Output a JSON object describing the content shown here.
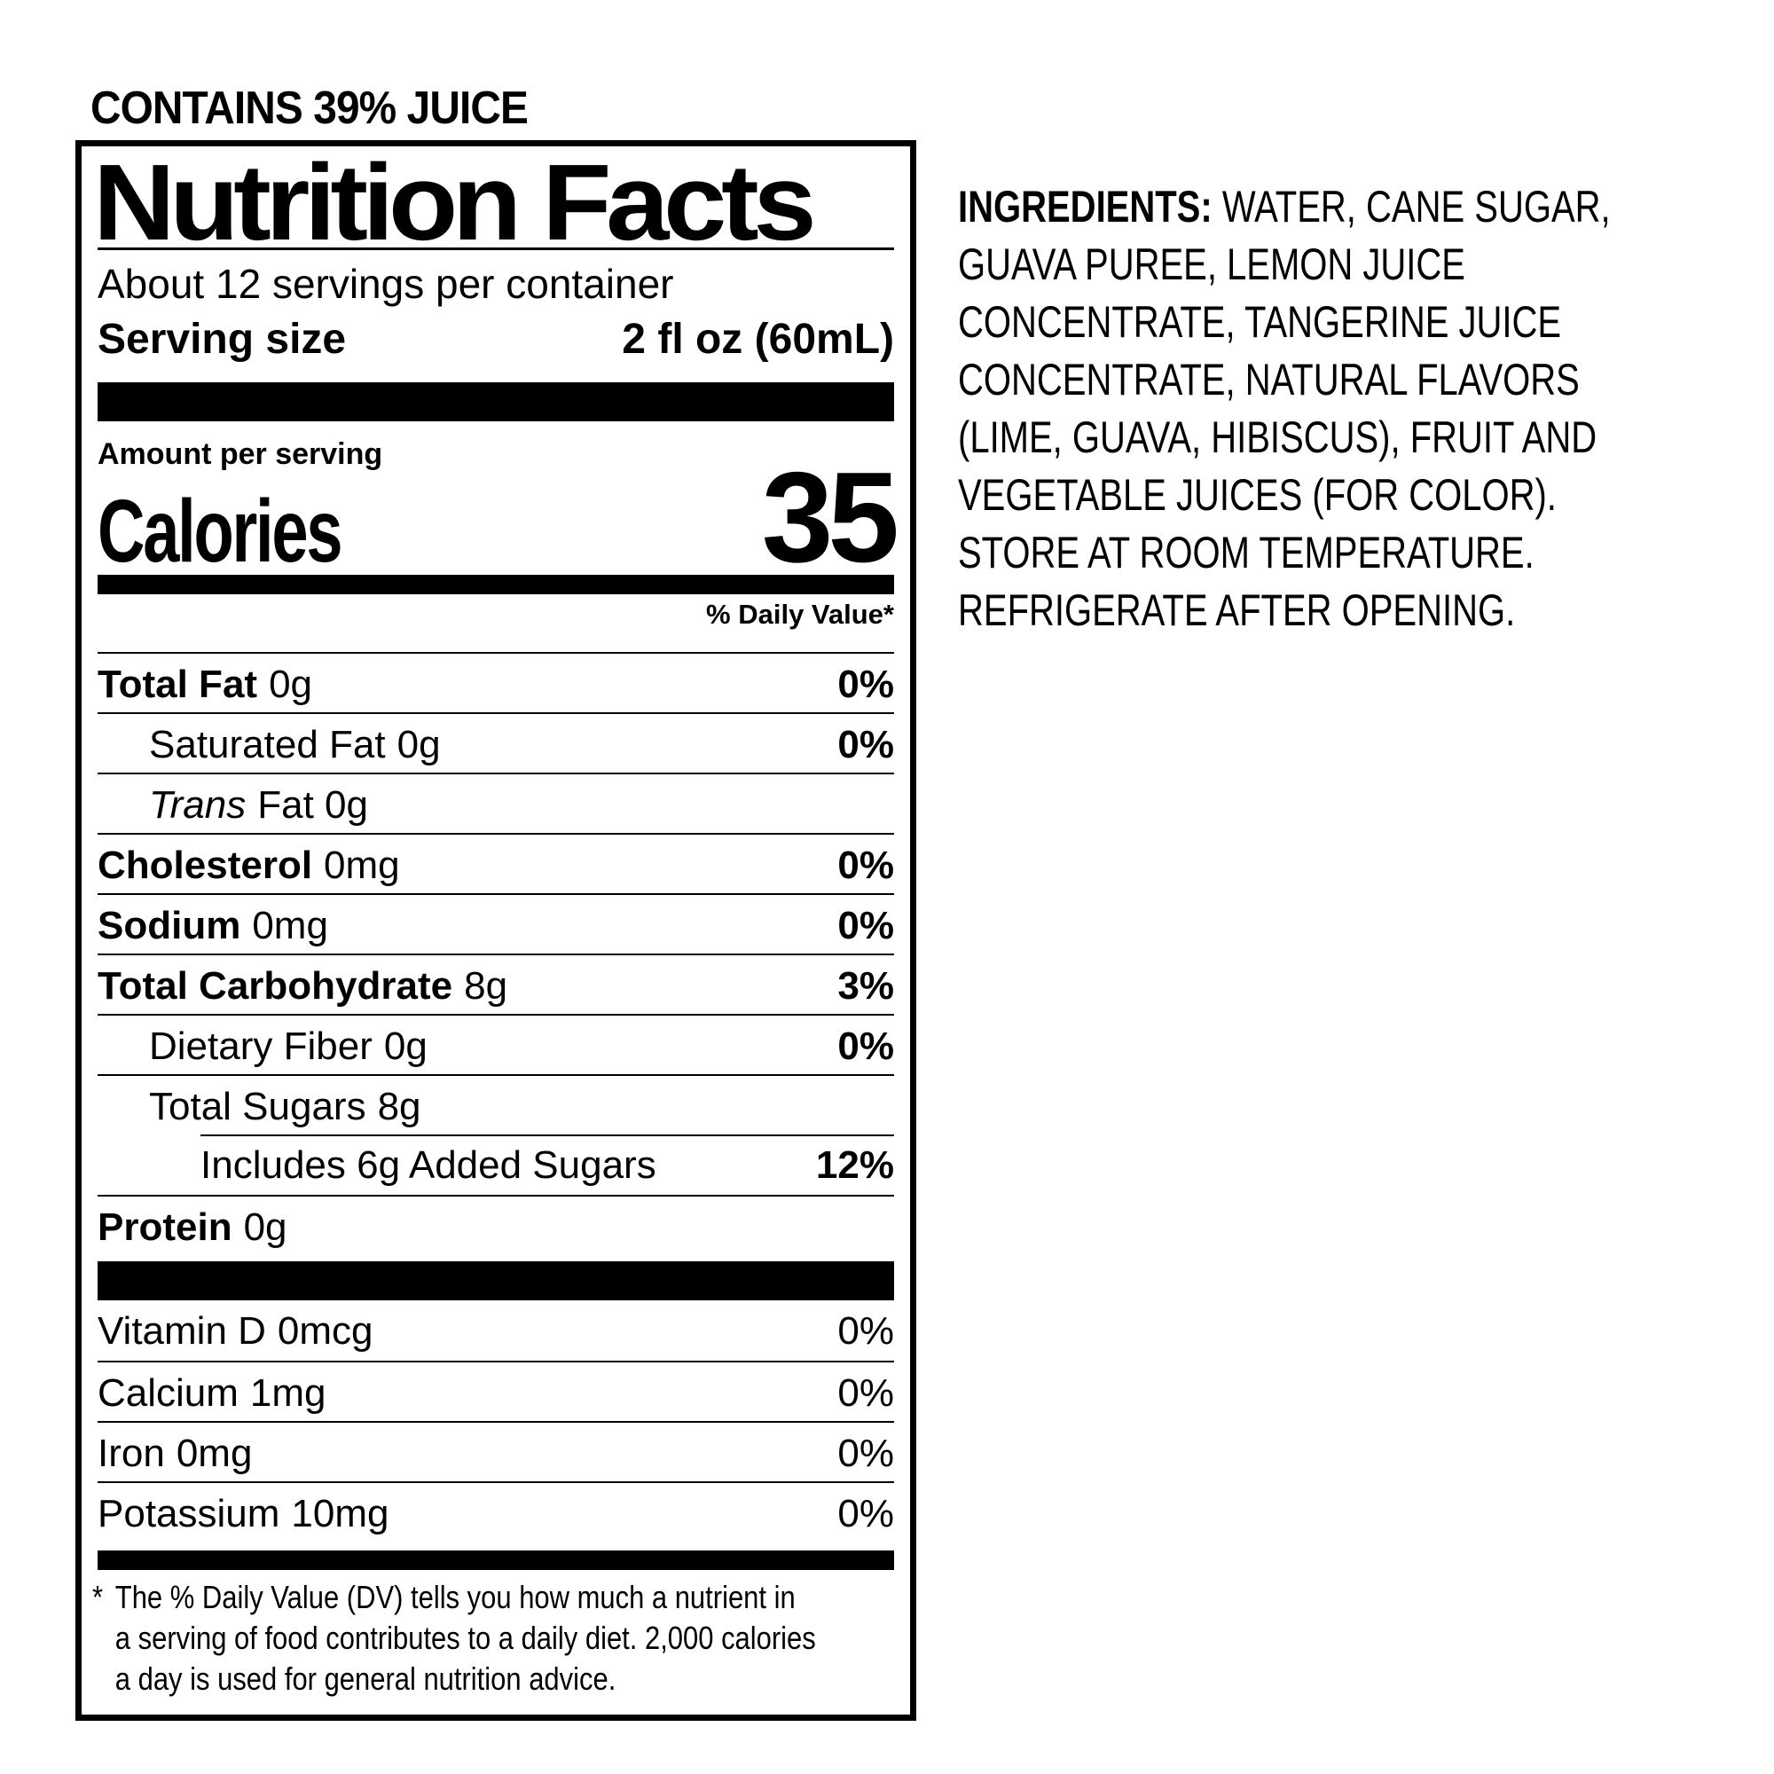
{
  "colors": {
    "text": "#000000",
    "background": "#ffffff"
  },
  "contains_statement": "CONTAINS 39% JUICE",
  "nutrition_facts": {
    "title": "Nutrition Facts",
    "servings_per_container": "About 12 servings per container",
    "serving_size_label": "Serving size",
    "serving_size_value": "2 fl oz (60mL)",
    "amount_per_serving_label": "Amount per serving",
    "calories_label": "Calories",
    "calories_value": "35",
    "daily_value_header": "% Daily Value*",
    "rows": [
      {
        "name": "Total Fat",
        "amount": "0g",
        "dv": "0%"
      },
      {
        "name": "Saturated Fat",
        "amount": "0g",
        "dv": "0%"
      },
      {
        "name": "Trans",
        "amount": "Fat 0g",
        "dv": ""
      },
      {
        "name": "Cholesterol",
        "amount": "0mg",
        "dv": "0%"
      },
      {
        "name": "Sodium",
        "amount": "0mg",
        "dv": "0%"
      },
      {
        "name": "Total Carbohydrate",
        "amount": "8g",
        "dv": "3%"
      },
      {
        "name": "Dietary Fiber",
        "amount": "0g",
        "dv": "0%"
      },
      {
        "name": "Total Sugars",
        "amount": "8g",
        "dv": ""
      },
      {
        "name": "Includes 6g Added Sugars",
        "amount": "",
        "dv": "12%"
      },
      {
        "name": "Protein",
        "amount": "0g",
        "dv": ""
      }
    ],
    "vitamins": [
      {
        "name": "Vitamin D",
        "amount": "0mcg",
        "dv": "0%"
      },
      {
        "name": "Calcium",
        "amount": "1mg",
        "dv": "0%"
      },
      {
        "name": "Iron",
        "amount": "0mg",
        "dv": "0%"
      },
      {
        "name": "Potassium",
        "amount": "10mg",
        "dv": "0%"
      }
    ],
    "footnote_symbol": "*",
    "footnote_text": "The % Daily Value (DV) tells you how much a nutrient in\na serving of food contributes to a daily diet. 2,000 calories\na day is used for general nutrition advice."
  },
  "ingredients": {
    "label": "INGREDIENTS:",
    "text": "WATER, CANE SUGAR,\nGUAVA PUREE, LEMON JUICE\nCONCENTRATE, TANGERINE JUICE\nCONCENTRATE, NATURAL FLAVORS\n(LIME, GUAVA, HIBISCUS), FRUIT AND\nVEGETABLE JUICES (FOR COLOR).\nSTORE AT ROOM TEMPERATURE.\nREFRIGERATE AFTER OPENING."
  }
}
